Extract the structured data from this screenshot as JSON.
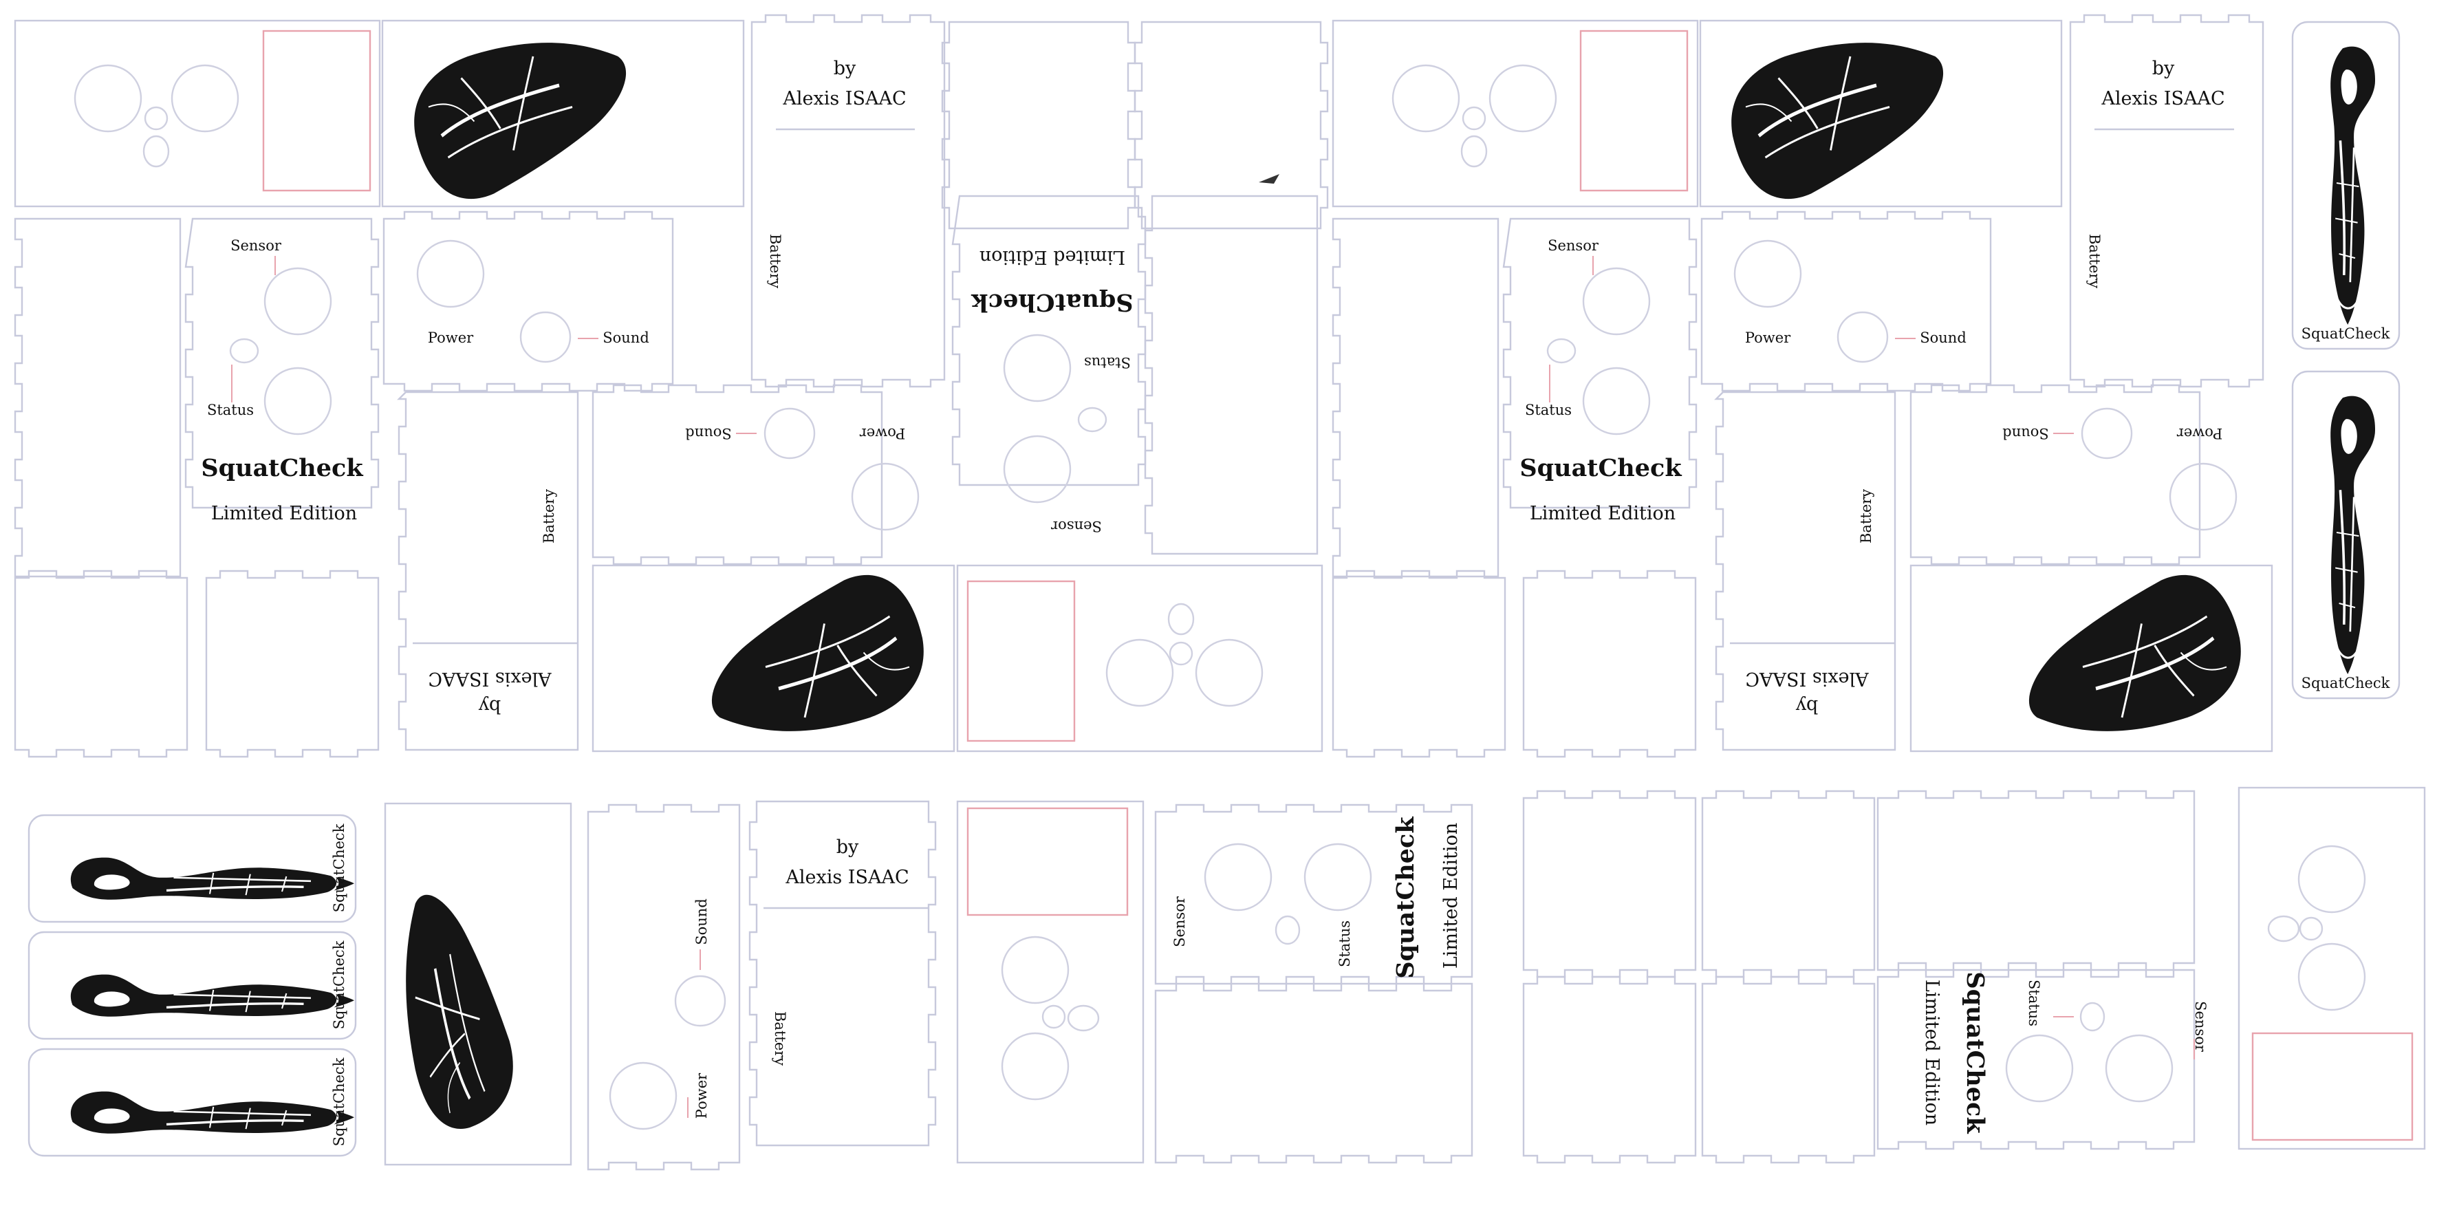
{
  "sheet": {
    "title": "SquatCheck",
    "edition": "Limited Edition",
    "by": "by",
    "author": "Alexis ISAAC",
    "labels": {
      "sensor": "Sensor",
      "status": "Status",
      "power": "Power",
      "sound": "Sound",
      "battery": "Battery"
    },
    "colors": {
      "cut_line": "#c7c9dc",
      "engrave_line": "#e8a3ad",
      "text": "#111111",
      "illustration": "#151515"
    },
    "illustration": "anatomical-leg-muscle-engraving"
  }
}
